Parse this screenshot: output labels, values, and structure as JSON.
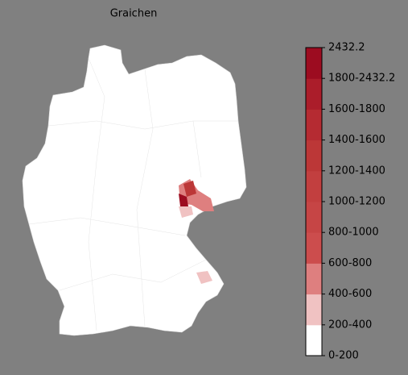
{
  "map": {
    "title": "Graichen",
    "legend": {
      "labels": [
        "0-200",
        "200-400",
        "400-600",
        "600-800",
        "800-1000",
        "1000-1200",
        "1200-1400",
        "1400-1600",
        "1600-1800",
        "1800-2432.2",
        "2432.2"
      ],
      "colors": [
        "#ffffff",
        "#f0c2c2",
        "#de7f7f",
        "#cc4d4d",
        "#c64545",
        "#c23f3f",
        "#bc3737",
        "#b52b32",
        "#ab1d2a",
        "#9c0c20"
      ]
    }
  }
}
